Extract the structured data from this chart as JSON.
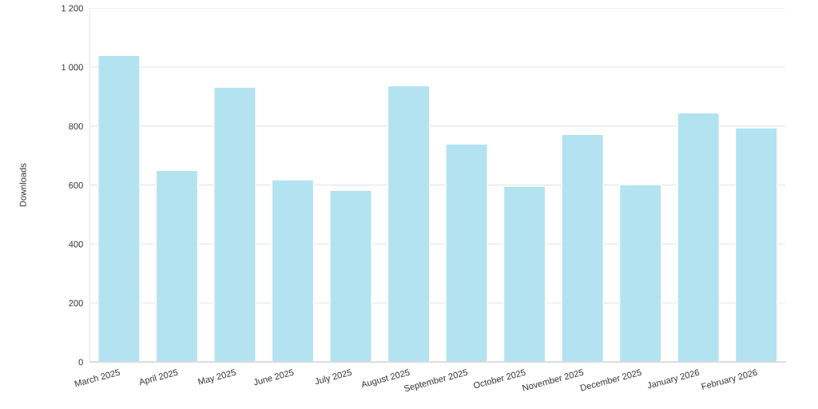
{
  "chart_data": {
    "type": "bar",
    "ylabel": "Downloads",
    "categories": [
      "March 2025",
      "April 2025",
      "May 2025",
      "June 2025",
      "July 2025",
      "August 2025",
      "September 2025",
      "October 2025",
      "November 2025",
      "December 2025",
      "January 2026",
      "February 2026"
    ],
    "values": [
      1040,
      650,
      932,
      618,
      582,
      937,
      739,
      596,
      772,
      601,
      845,
      794
    ],
    "color": "#b3e3f1",
    "ylim": [
      0,
      1200
    ],
    "yticks": [
      0,
      200,
      400,
      600,
      800,
      {
        "value": 1000,
        "label": "1 000"
      },
      {
        "value": 1200,
        "label": "1 200"
      }
    ],
    "grid": "y",
    "legend": false
  }
}
